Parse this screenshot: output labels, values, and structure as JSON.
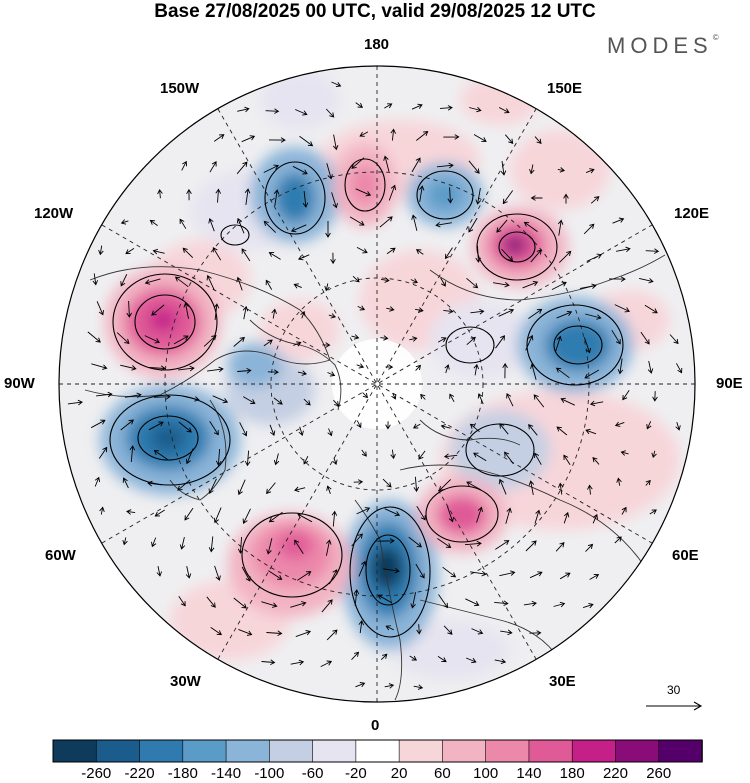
{
  "title": "Base 27/08/2025 00 UTC, valid 29/08/2025 12 UTC",
  "brand": "MODES",
  "brand_mark": "©",
  "longitude_labels": {
    "north": "180",
    "south": "0",
    "west": "90W",
    "east": "90E",
    "nw_upper": "150W",
    "nw_lower": "120W",
    "ne_upper": "150E",
    "ne_lower": "120E",
    "sw_upper": "60W",
    "sw_lower": "30W",
    "se_upper": "60E",
    "se_lower": "30E"
  },
  "reference_vector": {
    "label": "30"
  },
  "colorbar": {
    "ticks": [
      "-260",
      "-220",
      "-180",
      "-140",
      "-100",
      "-60",
      "-20",
      "20",
      "60",
      "100",
      "140",
      "180",
      "220",
      "260"
    ],
    "colors": [
      "#0e3a5c",
      "#1a5d8c",
      "#2f7bb0",
      "#5a9bc8",
      "#8ab4d8",
      "#c4cfe3",
      "#e6e4f0",
      "#ffffff",
      "#f7d6da",
      "#f2b3c2",
      "#ec88aa",
      "#e05a98",
      "#c42088",
      "#8a0c78",
      "#55006a"
    ]
  }
}
